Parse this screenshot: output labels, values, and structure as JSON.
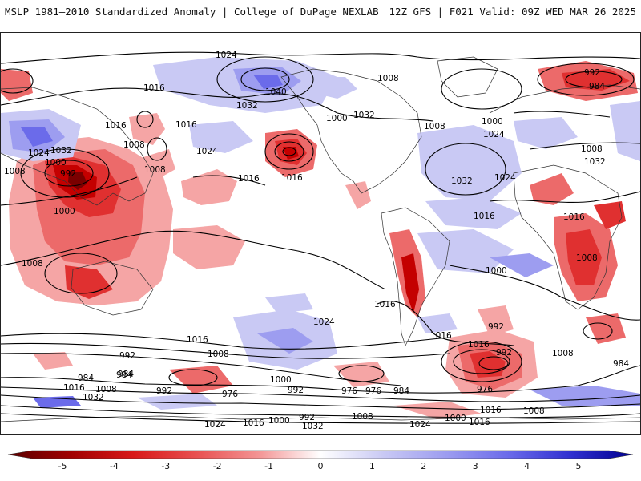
{
  "header": {
    "left_title": "MSLP 1981–2010 Standardized Anomaly | College of DuPage NEXLAB",
    "right_title": "12Z GFS | F021 Valid: 09Z WED MAR 26 2025"
  },
  "colorbar": {
    "ticks": [
      "-5",
      "-4",
      "-3",
      "-2",
      "-1",
      "0",
      "1",
      "2",
      "3",
      "4",
      "5"
    ],
    "colors": [
      "#7a0000",
      "#c40000",
      "#e03030",
      "#ec6a6a",
      "#f5a5a5",
      "#ffffff",
      "#c9c9f4",
      "#9d9df0",
      "#6b6bea",
      "#3c3cd8",
      "#1010b0"
    ]
  },
  "map": {
    "isobar_labels": [
      "1024",
      "1040",
      "1032",
      "1016",
      "1008",
      "1000",
      "992",
      "984",
      "976",
      "1024",
      "1016",
      "1008",
      "1032",
      "1024",
      "1016",
      "1008",
      "1000",
      "992",
      "1016",
      "1008",
      "1000",
      "992",
      "984",
      "1016",
      "1032",
      "1024",
      "1016",
      "1008",
      "1016",
      "1008",
      "1016",
      "1000",
      "992",
      "1008",
      "1000",
      "992",
      "976",
      "984",
      "992",
      "1008",
      "1024",
      "1016",
      "1000",
      "992",
      "1032",
      "1024",
      "1032",
      "1016",
      "1008",
      "984",
      "976",
      "1016",
      "1024",
      "1016",
      "1016",
      "1000",
      "1008",
      "1016",
      "992",
      "1000",
      "984",
      "976",
      "1008",
      "1016",
      "1008",
      "1032",
      "1024",
      "1008",
      "1032",
      "984"
    ]
  }
}
